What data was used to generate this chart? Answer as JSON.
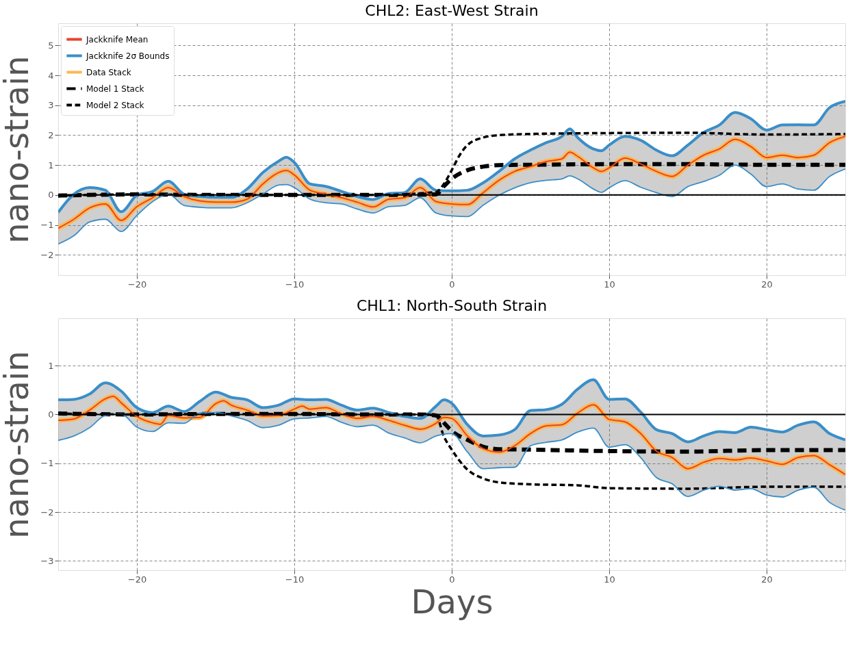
{
  "chart_data": [
    {
      "type": "line",
      "title": "CHL2: East-West Strain",
      "ylabel": "nano-strain",
      "xlim": [
        -25,
        25
      ],
      "xticks": [
        -20,
        -10,
        0,
        10,
        20
      ],
      "ylim": [
        -2.68,
        5.74
      ],
      "yticks": [
        -2,
        -1,
        0,
        1,
        2,
        3,
        4,
        5
      ],
      "grid": true,
      "legend": "top left",
      "line_style": "solid",
      "ref_lines": [
        {
          "axis": "y",
          "value": 0,
          "color": "#000000"
        }
      ],
      "series": [
        {
          "name": "Jackknife Mean",
          "color": "#e8452c",
          "x": [
            -25,
            -24,
            -23,
            -22,
            -21,
            -20,
            -19,
            -18,
            -17,
            -16,
            -15,
            -14,
            -13,
            -12,
            -11,
            -10.5,
            -10,
            -9,
            -8,
            -7,
            -6,
            -5,
            -4,
            -3,
            -2,
            -1,
            0,
            1,
            2,
            3,
            4,
            5,
            6,
            7,
            7.5,
            8,
            9,
            9.5,
            10,
            11,
            12,
            13,
            14,
            15,
            16,
            17,
            18,
            19,
            20,
            21,
            22,
            23,
            24,
            25
          ],
          "values": [
            -1.11,
            -0.81,
            -0.43,
            -0.3,
            -0.85,
            -0.39,
            -0.09,
            0.25,
            -0.05,
            -0.2,
            -0.24,
            -0.24,
            -0.14,
            0.37,
            0.75,
            0.82,
            0.67,
            0.16,
            0.03,
            -0.09,
            -0.24,
            -0.4,
            -0.14,
            -0.09,
            0.25,
            -0.22,
            -0.3,
            -0.32,
            0.08,
            0.49,
            0.79,
            0.95,
            1.12,
            1.21,
            1.43,
            1.29,
            0.91,
            0.79,
            0.91,
            1.23,
            1.04,
            0.79,
            0.62,
            1.0,
            1.33,
            1.54,
            1.86,
            1.62,
            1.25,
            1.33,
            1.25,
            1.33,
            1.75,
            1.96
          ]
        },
        {
          "name": "Jackknife 2σ Bounds",
          "color": "#3a8ec8",
          "x": [
            -25,
            -24,
            -23,
            -22,
            -21,
            -20,
            -19,
            -18,
            -17,
            -16,
            -15,
            -14,
            -13,
            -12,
            -11,
            -10.5,
            -10,
            -9,
            -8,
            -7,
            -6,
            -5,
            -4,
            -3,
            -2,
            -1,
            0,
            1,
            2,
            3,
            4,
            5,
            6,
            7,
            7.5,
            8,
            9,
            9.5,
            10,
            11,
            12,
            13,
            14,
            15,
            16,
            17,
            18,
            19,
            20,
            21,
            22,
            23,
            24,
            25
          ],
          "values": [
            -0.58,
            0.03,
            0.25,
            0.16,
            -0.56,
            -0.01,
            0.12,
            0.46,
            0.03,
            -0.05,
            -0.08,
            -0.08,
            0.2,
            0.75,
            1.13,
            1.26,
            1.09,
            0.37,
            0.29,
            0.12,
            -0.05,
            -0.15,
            0.05,
            0.08,
            0.54,
            0.16,
            0.14,
            0.16,
            0.41,
            0.79,
            1.21,
            1.5,
            1.75,
            1.96,
            2.21,
            1.92,
            1.54,
            1.48,
            1.67,
            1.96,
            1.83,
            1.5,
            1.31,
            1.67,
            2.09,
            2.34,
            2.76,
            2.55,
            2.17,
            2.34,
            2.35,
            2.34,
            2.92,
            3.13
          ],
          "lower": [
            -1.64,
            -1.36,
            -0.9,
            -0.81,
            -1.22,
            -0.68,
            -0.22,
            0.03,
            -0.35,
            -0.41,
            -0.43,
            -0.43,
            -0.26,
            0.03,
            0.33,
            0.35,
            0.25,
            -0.14,
            -0.26,
            -0.3,
            -0.47,
            -0.6,
            -0.39,
            -0.35,
            -0.09,
            -0.6,
            -0.7,
            -0.72,
            -0.34,
            -0.01,
            0.24,
            0.41,
            0.49,
            0.54,
            0.64,
            0.54,
            0.2,
            0.09,
            0.24,
            0.48,
            0.26,
            0.08,
            -0.05,
            0.28,
            0.45,
            0.66,
            1.0,
            0.7,
            0.28,
            0.37,
            0.2,
            0.16,
            0.62,
            0.87
          ],
          "upper": [
            -0.58,
            0.03,
            0.25,
            0.16,
            -0.56,
            -0.01,
            0.12,
            0.46,
            0.03,
            -0.05,
            -0.08,
            -0.08,
            0.2,
            0.75,
            1.13,
            1.26,
            1.09,
            0.37,
            0.29,
            0.12,
            -0.05,
            -0.15,
            0.05,
            0.08,
            0.54,
            0.16,
            0.14,
            0.16,
            0.41,
            0.79,
            1.21,
            1.5,
            1.75,
            1.96,
            2.21,
            1.92,
            1.54,
            1.48,
            1.67,
            1.96,
            1.83,
            1.5,
            1.31,
            1.67,
            2.09,
            2.34,
            2.76,
            2.55,
            2.17,
            2.34,
            2.35,
            2.34,
            2.92,
            3.13
          ]
        },
        {
          "color": "#3a8ec8",
          "x": [
            -25,
            -24,
            -23,
            -22,
            -21,
            -20,
            -19,
            -18,
            -17,
            -16,
            -15,
            -14,
            -13,
            -12,
            -11,
            -10.5,
            -10,
            -9,
            -8,
            -7,
            -6,
            -5,
            -4,
            -3,
            -2,
            -1,
            0,
            1,
            2,
            3,
            4,
            5,
            6,
            7,
            7.5,
            8,
            9,
            9.5,
            10,
            11,
            12,
            13,
            14,
            15,
            16,
            17,
            18,
            19,
            20,
            21,
            22,
            23,
            24,
            25
          ],
          "values": [
            -1.64,
            -1.36,
            -0.9,
            -0.81,
            -1.22,
            -0.68,
            -0.22,
            0.03,
            -0.35,
            -0.41,
            -0.43,
            -0.43,
            -0.26,
            0.03,
            0.33,
            0.35,
            0.25,
            -0.14,
            -0.26,
            -0.3,
            -0.47,
            -0.6,
            -0.39,
            -0.35,
            -0.09,
            -0.6,
            -0.7,
            -0.72,
            -0.34,
            -0.01,
            0.24,
            0.41,
            0.49,
            0.54,
            0.64,
            0.54,
            0.2,
            0.09,
            0.24,
            0.48,
            0.26,
            0.08,
            -0.05,
            0.28,
            0.45,
            0.66,
            1.0,
            0.7,
            0.28,
            0.37,
            0.2,
            0.16,
            0.62,
            0.87
          ]
        },
        {
          "name": "Data Stack",
          "color": "#fdb94d",
          "x": [
            -25,
            -24,
            -23,
            -22,
            -21,
            -20,
            -19,
            -18,
            -17,
            -16,
            -15,
            -14,
            -13,
            -12,
            -11,
            -10.5,
            -10,
            -9,
            -8,
            -7,
            -6,
            -5,
            -4,
            -3,
            -2,
            -1,
            0,
            1,
            2,
            3,
            4,
            5,
            6,
            7,
            7.5,
            8,
            9,
            9.5,
            10,
            11,
            12,
            13,
            14,
            15,
            16,
            17,
            18,
            19,
            20,
            21,
            22,
            23,
            24,
            25
          ],
          "values": [
            -1.11,
            -0.81,
            -0.43,
            -0.3,
            -0.85,
            -0.39,
            -0.09,
            0.25,
            -0.05,
            -0.2,
            -0.24,
            -0.24,
            -0.14,
            0.37,
            0.75,
            0.82,
            0.67,
            0.16,
            0.03,
            -0.09,
            -0.24,
            -0.4,
            -0.14,
            -0.09,
            0.25,
            -0.22,
            -0.3,
            -0.32,
            0.08,
            0.49,
            0.79,
            0.95,
            1.12,
            1.21,
            1.43,
            1.29,
            0.91,
            0.79,
            0.91,
            1.23,
            1.04,
            0.79,
            0.62,
            1.0,
            1.33,
            1.54,
            1.86,
            1.62,
            1.25,
            1.33,
            1.25,
            1.33,
            1.75,
            1.96
          ]
        },
        {
          "name": "Model 1 Stack",
          "color": "#000000",
          "line_style": "dashed",
          "x": [
            -25,
            -20,
            -15,
            -10,
            -5,
            -1,
            -0.5,
            0,
            1,
            2,
            3,
            5,
            10,
            15,
            20,
            25
          ],
          "values": [
            -0.02,
            0.02,
            0.0,
            0.0,
            0.0,
            0.02,
            0.29,
            0.54,
            0.83,
            0.95,
            1.0,
            1.01,
            1.03,
            1.03,
            1.01,
            1.01
          ]
        },
        {
          "name": "Model 2 Stack",
          "color": "#000000",
          "line_style": "dashed",
          "x": [
            -25,
            -20,
            -15,
            -10,
            -5,
            -1,
            -0.5,
            0,
            0.5,
            1,
            2,
            3,
            5,
            10,
            15,
            20,
            25
          ],
          "values": [
            -0.02,
            0.02,
            0.0,
            0.0,
            0.0,
            0.1,
            0.37,
            0.83,
            1.33,
            1.67,
            1.92,
            2.0,
            2.04,
            2.07,
            2.08,
            2.02,
            2.04
          ]
        }
      ]
    },
    {
      "type": "line",
      "title": "CHL1: North-South Strain",
      "xlabel": "Days",
      "ylabel": "nano-strain",
      "xlim": [
        -25,
        25
      ],
      "xticks": [
        -20,
        -10,
        0,
        10,
        20
      ],
      "ylim": [
        -3.19,
        1.97
      ],
      "yticks": [
        -3,
        -2,
        -1,
        0,
        1
      ],
      "grid": true,
      "line_style": "solid",
      "ref_lines": [
        {
          "axis": "y",
          "value": 0,
          "color": "#000000"
        }
      ],
      "series": [
        {
          "color": "#e8452c",
          "x": [
            -25,
            -24,
            -23,
            -22,
            -21.5,
            -21,
            -20,
            -19,
            -18.5,
            -18,
            -17,
            -16,
            -15,
            -14.5,
            -14,
            -13,
            -12,
            -11,
            -10,
            -9.5,
            -9,
            -8,
            -7,
            -6,
            -5,
            -4,
            -3,
            -2,
            -1,
            -0.5,
            0,
            1,
            2,
            3,
            4,
            5,
            6,
            7,
            8,
            9,
            10,
            11,
            12,
            13,
            14,
            15,
            16,
            17,
            18,
            19,
            20,
            21,
            22,
            23,
            24,
            25
          ],
          "values": [
            -0.12,
            -0.09,
            0.09,
            0.32,
            0.37,
            0.24,
            -0.04,
            -0.17,
            -0.2,
            -0.02,
            -0.07,
            -0.06,
            0.22,
            0.28,
            0.19,
            0.09,
            -0.03,
            -0.02,
            0.11,
            0.17,
            0.11,
            0.14,
            0.01,
            -0.08,
            -0.04,
            -0.12,
            -0.22,
            -0.3,
            -0.18,
            -0.06,
            -0.08,
            -0.44,
            -0.7,
            -0.77,
            -0.64,
            -0.39,
            -0.23,
            -0.21,
            0.03,
            0.2,
            -0.1,
            -0.15,
            -0.39,
            -0.75,
            -0.88,
            -1.11,
            -0.98,
            -0.9,
            -0.93,
            -0.89,
            -0.95,
            -1.02,
            -0.88,
            -0.84,
            -1.03,
            -1.23
          ]
        },
        {
          "color": "#3a8ec8",
          "x": [
            -25,
            -24,
            -23,
            -22,
            -21,
            -20,
            -19,
            -18,
            -17,
            -16,
            -15,
            -14,
            -13,
            -12,
            -11,
            -10,
            -9,
            -8,
            -7,
            -6,
            -5,
            -4,
            -3,
            -2,
            -1,
            -0.5,
            0,
            1,
            2,
            3,
            4,
            5,
            6,
            7,
            8,
            9,
            10,
            11,
            12,
            13,
            14,
            15,
            16,
            17,
            18,
            19,
            20,
            21,
            22,
            23,
            24,
            25
          ],
          "values": [
            0.3,
            0.31,
            0.42,
            0.65,
            0.48,
            0.14,
            0.04,
            0.17,
            0.06,
            0.27,
            0.46,
            0.35,
            0.3,
            0.14,
            0.19,
            0.32,
            0.3,
            0.31,
            0.19,
            0.09,
            0.13,
            0.04,
            -0.04,
            -0.08,
            0.17,
            0.3,
            0.23,
            -0.21,
            -0.44,
            -0.42,
            -0.31,
            0.08,
            0.1,
            0.21,
            0.52,
            0.71,
            0.31,
            0.32,
            0.05,
            -0.31,
            -0.39,
            -0.56,
            -0.44,
            -0.35,
            -0.37,
            -0.26,
            -0.31,
            -0.36,
            -0.22,
            -0.15,
            -0.39,
            -0.52
          ],
          "lower": [
            -0.53,
            -0.44,
            -0.27,
            -0.02,
            0.01,
            -0.26,
            -0.35,
            -0.17,
            -0.18,
            0.03,
            0.04,
            -0.03,
            -0.12,
            -0.27,
            -0.22,
            -0.09,
            -0.07,
            -0.04,
            -0.16,
            -0.25,
            -0.22,
            -0.38,
            -0.48,
            -0.58,
            -0.44,
            -0.4,
            -0.39,
            -0.77,
            -1.11,
            -1.09,
            -1.08,
            -0.64,
            -0.57,
            -0.52,
            -0.36,
            -0.28,
            -0.67,
            -0.62,
            -0.88,
            -1.29,
            -1.42,
            -1.68,
            -1.55,
            -1.47,
            -1.55,
            -1.52,
            -1.65,
            -1.69,
            -1.55,
            -1.49,
            -1.8,
            -1.96
          ],
          "upper": [
            0.3,
            0.31,
            0.42,
            0.65,
            0.48,
            0.14,
            0.04,
            0.17,
            0.06,
            0.27,
            0.46,
            0.35,
            0.3,
            0.14,
            0.19,
            0.32,
            0.3,
            0.31,
            0.19,
            0.09,
            0.13,
            0.04,
            -0.04,
            -0.08,
            0.17,
            0.3,
            0.23,
            -0.21,
            -0.44,
            -0.42,
            -0.31,
            0.08,
            0.1,
            0.21,
            0.52,
            0.71,
            0.31,
            0.32,
            0.05,
            -0.31,
            -0.39,
            -0.56,
            -0.44,
            -0.35,
            -0.37,
            -0.26,
            -0.31,
            -0.36,
            -0.22,
            -0.15,
            -0.39,
            -0.52
          ]
        },
        {
          "color": "#3a8ec8",
          "x": [
            -25,
            -24,
            -23,
            -22,
            -21,
            -20,
            -19,
            -18,
            -17,
            -16,
            -15,
            -14,
            -13,
            -12,
            -11,
            -10,
            -9,
            -8,
            -7,
            -6,
            -5,
            -4,
            -3,
            -2,
            -1,
            -0.5,
            0,
            1,
            2,
            3,
            4,
            5,
            6,
            7,
            8,
            9,
            10,
            11,
            12,
            13,
            14,
            15,
            16,
            17,
            18,
            19,
            20,
            21,
            22,
            23,
            24,
            25
          ],
          "values": [
            -0.53,
            -0.44,
            -0.27,
            -0.02,
            0.01,
            -0.26,
            -0.35,
            -0.17,
            -0.18,
            0.03,
            0.04,
            -0.03,
            -0.12,
            -0.27,
            -0.22,
            -0.09,
            -0.07,
            -0.04,
            -0.16,
            -0.25,
            -0.22,
            -0.38,
            -0.48,
            -0.58,
            -0.44,
            -0.4,
            -0.39,
            -0.77,
            -1.11,
            -1.09,
            -1.08,
            -0.64,
            -0.57,
            -0.52,
            -0.36,
            -0.28,
            -0.67,
            -0.62,
            -0.88,
            -1.29,
            -1.42,
            -1.68,
            -1.55,
            -1.47,
            -1.55,
            -1.52,
            -1.65,
            -1.69,
            -1.55,
            -1.49,
            -1.8,
            -1.96
          ]
        },
        {
          "color": "#fdb94d",
          "x": [
            -25,
            -24,
            -23,
            -22,
            -21.5,
            -21,
            -20,
            -19,
            -18.5,
            -18,
            -17,
            -16,
            -15,
            -14.5,
            -14,
            -13,
            -12,
            -11,
            -10,
            -9.5,
            -9,
            -8,
            -7,
            -6,
            -5,
            -4,
            -3,
            -2,
            -1,
            -0.5,
            0,
            1,
            2,
            3,
            4,
            5,
            6,
            7,
            8,
            9,
            10,
            11,
            12,
            13,
            14,
            15,
            16,
            17,
            18,
            19,
            20,
            21,
            22,
            23,
            24,
            25
          ],
          "values": [
            -0.12,
            -0.09,
            0.09,
            0.32,
            0.37,
            0.24,
            -0.04,
            -0.17,
            -0.2,
            -0.02,
            -0.07,
            -0.06,
            0.22,
            0.28,
            0.19,
            0.09,
            -0.03,
            -0.02,
            0.11,
            0.17,
            0.11,
            0.14,
            0.01,
            -0.08,
            -0.04,
            -0.12,
            -0.22,
            -0.3,
            -0.18,
            -0.06,
            -0.08,
            -0.44,
            -0.7,
            -0.77,
            -0.64,
            -0.39,
            -0.23,
            -0.21,
            0.03,
            0.2,
            -0.1,
            -0.15,
            -0.39,
            -0.75,
            -0.88,
            -1.11,
            -0.98,
            -0.9,
            -0.93,
            -0.89,
            -0.95,
            -1.02,
            -0.88,
            -0.84,
            -1.03,
            -1.23
          ]
        },
        {
          "color": "#000000",
          "line_style": "dashed",
          "x": [
            -25,
            -20,
            -15,
            -10,
            -5,
            -2,
            -1,
            -0.5,
            0,
            1,
            2,
            3,
            5,
            10,
            15,
            20,
            25
          ],
          "values": [
            0.02,
            0.0,
            0.01,
            0.01,
            0.0,
            0.0,
            -0.02,
            -0.17,
            -0.34,
            -0.52,
            -0.66,
            -0.71,
            -0.72,
            -0.75,
            -0.76,
            -0.73,
            -0.73
          ]
        },
        {
          "color": "#000000",
          "line_style": "dashed",
          "x": [
            -25,
            -20,
            -15,
            -10,
            -5,
            -2,
            -1,
            -0.5,
            0,
            1,
            2,
            3,
            5,
            8,
            10,
            15,
            20,
            25
          ],
          "values": [
            0.02,
            0.0,
            0.01,
            0.01,
            0.0,
            0.0,
            -0.02,
            -0.45,
            -0.72,
            -1.13,
            -1.31,
            -1.39,
            -1.43,
            -1.45,
            -1.51,
            -1.52,
            -1.48,
            -1.48
          ]
        }
      ]
    }
  ]
}
